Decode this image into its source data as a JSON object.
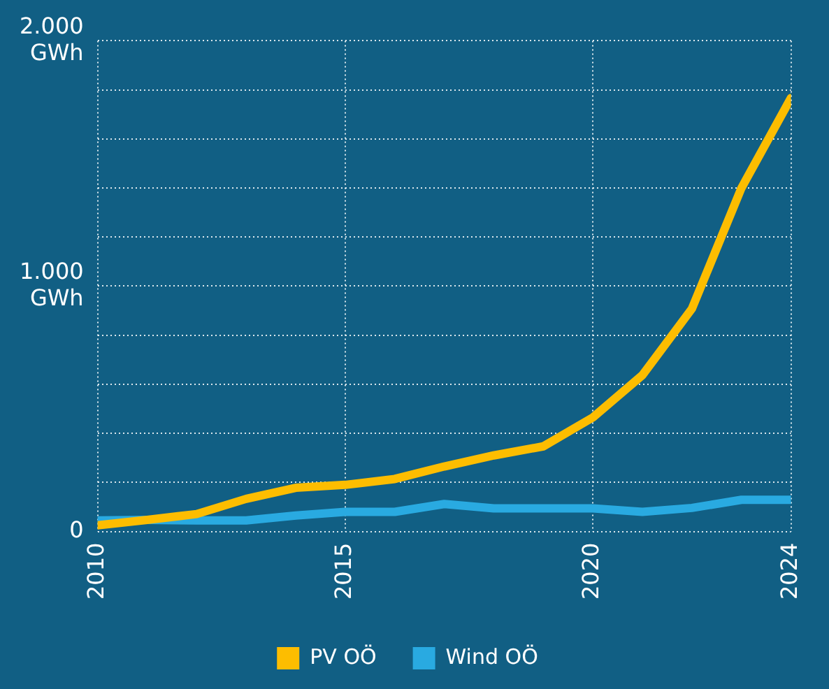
{
  "chart_data": {
    "type": "line",
    "x": [
      2010,
      2011,
      2012,
      2013,
      2014,
      2015,
      2016,
      2017,
      2018,
      2019,
      2020,
      2021,
      2022,
      2023,
      2024
    ],
    "series": [
      {
        "name": "PV OÖ",
        "color": "#fdbd00",
        "values": [
          25,
          47,
          71,
          133,
          178,
          190,
          214,
          265,
          310,
          347,
          465,
          637,
          908,
          1400,
          1767
        ]
      },
      {
        "name": "Wind OÖ",
        "color": "#29aae1",
        "values": [
          45,
          47,
          45,
          45,
          65,
          80,
          80,
          112,
          94,
          94,
          94,
          80,
          96,
          129,
          129
        ]
      }
    ],
    "xlim": [
      2010,
      2024
    ],
    "xticks": [
      2010,
      2015,
      2020,
      2024
    ],
    "ylim": [
      0,
      2000
    ],
    "yticks": [
      {
        "value": 0,
        "label": "0"
      },
      {
        "value": 200,
        "label": null
      },
      {
        "value": 400,
        "label": null
      },
      {
        "value": 600,
        "label": null
      },
      {
        "value": 800,
        "label": null
      },
      {
        "value": 1000,
        "label": "1.000\nGWh"
      },
      {
        "value": 1200,
        "label": null
      },
      {
        "value": 1400,
        "label": null
      },
      {
        "value": 1600,
        "label": null
      },
      {
        "value": 1800,
        "label": null
      },
      {
        "value": 2000,
        "label": "2.000\nGWh"
      }
    ],
    "grid": true,
    "legend": "bottom",
    "marker": "none",
    "line_style": "solid"
  }
}
